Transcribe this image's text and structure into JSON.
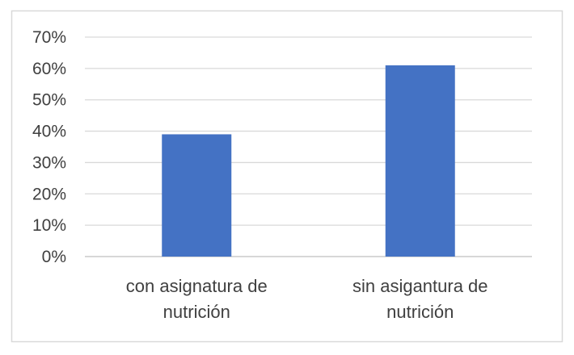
{
  "chart_data": {
    "type": "bar",
    "categories": [
      [
        "con asignatura de",
        "nutrición"
      ],
      [
        "sin asigantura de",
        "nutrición"
      ]
    ],
    "values": [
      0.39,
      0.61
    ],
    "value_format": "percent",
    "ylim": [
      0,
      0.7
    ],
    "yticks": [
      0,
      0.1,
      0.2,
      0.3,
      0.4,
      0.5,
      0.6,
      0.7
    ],
    "ytick_labels": [
      "0%",
      "10%",
      "20%",
      "30%",
      "40%",
      "50%",
      "60%",
      "70%"
    ],
    "title": "",
    "xlabel": "",
    "ylabel": "",
    "grid": true,
    "legend": "none",
    "bar_color": "#4472C4",
    "grid_color": "#D9D9D9",
    "border_color": "#D9D9D9"
  }
}
